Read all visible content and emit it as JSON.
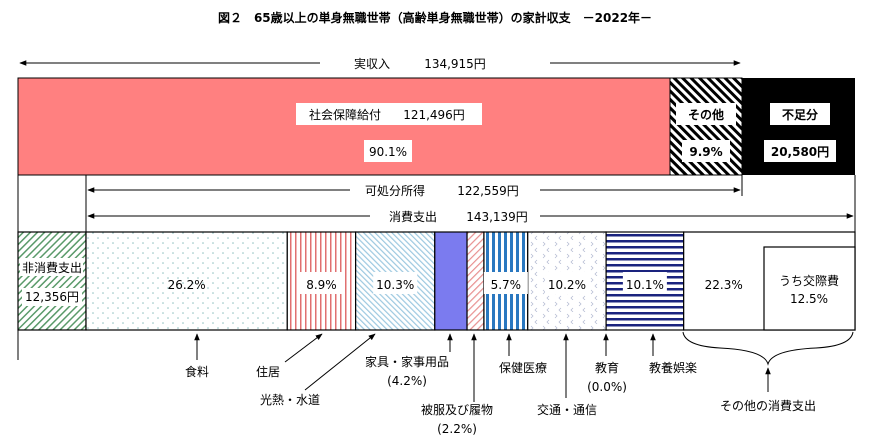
{
  "chart_data": {
    "type": "bar",
    "title": "図２　65歳以上の単身無職世帯（高齢単身無職世帯）の家計収支　－2022年－",
    "income": {
      "label": "実収入",
      "value_text": "134,915円",
      "value": 134915,
      "segments": [
        {
          "name": "社会保障給付",
          "value_text": "121,496円",
          "value": 121496,
          "pct_text": "90.1%",
          "pct": 90.1
        },
        {
          "name": "その他",
          "pct_text": "9.9%",
          "pct": 9.9
        }
      ]
    },
    "deficit": {
      "label": "不足分",
      "value_text": "20,580円",
      "value": 20580
    },
    "disposable": {
      "label": "可処分所得",
      "value_text": "122,559円",
      "value": 122559
    },
    "consumption": {
      "label": "消費支出",
      "value_text": "143,139円",
      "value": 143139
    },
    "non_consumption": {
      "label": "非消費支出",
      "value_text": "12,356円",
      "value": 12356
    },
    "categories": [
      {
        "name": "食料",
        "pct_text": "26.2%",
        "pct": 26.2
      },
      {
        "name": "住居",
        "pct_text": "8.9%",
        "pct": 8.9
      },
      {
        "name": "光熱・水道",
        "pct_text": "10.3%",
        "pct": 10.3
      },
      {
        "name": "家具・家事用品",
        "pct_text": "(4.2%)",
        "pct": 4.2
      },
      {
        "name": "被服及び履物",
        "pct_text": "(2.2%)",
        "pct": 2.2
      },
      {
        "name": "保健医療",
        "pct_text": "5.7%",
        "pct": 5.7
      },
      {
        "name": "交通・通信",
        "pct_text": "10.2%",
        "pct": 10.2
      },
      {
        "name": "教育",
        "pct_text": "(0.0%)",
        "pct": 0.0
      },
      {
        "name": "教養娯楽",
        "pct_text": "10.1%",
        "pct": 10.1
      },
      {
        "name": "その他の消費支出",
        "pct_text": "22.3%",
        "pct": 22.3
      }
    ],
    "other_sub": {
      "name": "うち交際費",
      "pct_text": "12.5%",
      "pct": 12.5
    },
    "colors": {
      "social": "#FF8080",
      "furniture": "#7B7BEF",
      "deficit": "#000000"
    }
  }
}
